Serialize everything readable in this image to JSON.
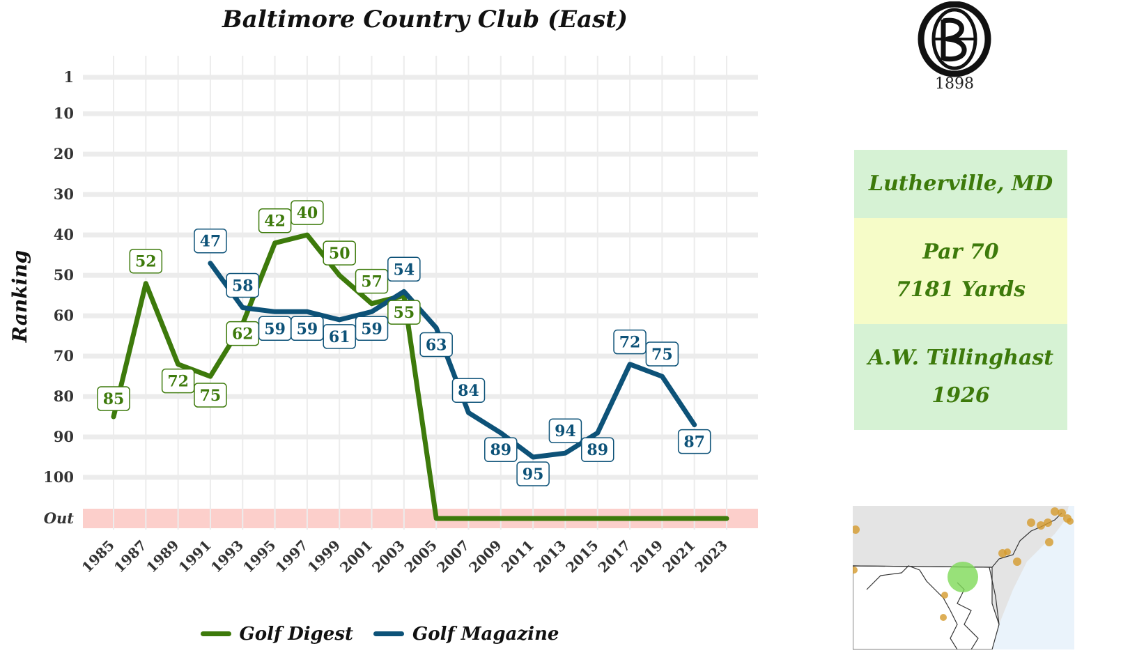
{
  "title": "Baltimore Country Club (East)",
  "colors": {
    "golf_digest": "#3d7a0b",
    "golf_magazine": "#0d5278",
    "out_band": "#fccfcb",
    "grid": "#ebebeb"
  },
  "chart_data": {
    "type": "line",
    "title": "Baltimore Country Club (East)",
    "xlabel": "",
    "ylabel": "Ranking",
    "y_reversed": true,
    "y_ticks": [
      "1",
      "10",
      "20",
      "30",
      "40",
      "50",
      "60",
      "70",
      "80",
      "90",
      "100",
      "Out"
    ],
    "y_tick_values": [
      1,
      10,
      20,
      30,
      40,
      50,
      60,
      70,
      80,
      90,
      100,
      111
    ],
    "out_value": 111,
    "x_ticks": [
      "1985",
      "1987",
      "1989",
      "1991",
      "1993",
      "1995",
      "1997",
      "1999",
      "2001",
      "2003",
      "2005",
      "2007",
      "2009",
      "2011",
      "2013",
      "2015",
      "2017",
      "2019",
      "2021",
      "2023"
    ],
    "xlim": [
      1985,
      2023
    ],
    "grid": true,
    "legend_position": "bottom",
    "series": [
      {
        "name": "Golf Digest",
        "color": "#3d7a0b",
        "x": [
          1985,
          1987,
          1989,
          1991,
          1993,
          1995,
          1997,
          1999,
          2001,
          2003,
          2005,
          2007,
          2009,
          2011,
          2013,
          2015,
          2017,
          2019,
          2021,
          2023
        ],
        "values": [
          85,
          52,
          72,
          75,
          62,
          42,
          40,
          50,
          57,
          55,
          "Out",
          "Out",
          "Out",
          "Out",
          "Out",
          "Out",
          "Out",
          "Out",
          "Out",
          "Out"
        ],
        "labels": [
          "85",
          "52",
          "72",
          "75",
          "62",
          "42",
          "40",
          "50",
          "57",
          "55"
        ]
      },
      {
        "name": "Golf Magazine",
        "color": "#0d5278",
        "x": [
          1991,
          1993,
          1995,
          1997,
          1999,
          2001,
          2003,
          2005,
          2007,
          2009,
          2011,
          2013,
          2015,
          2017,
          2019,
          2021
        ],
        "values": [
          47,
          58,
          59,
          59,
          61,
          59,
          54,
          63,
          84,
          89,
          95,
          94,
          89,
          72,
          75,
          87
        ],
        "labels": [
          "47",
          "58",
          "59",
          "59",
          "61",
          "59",
          "54",
          "63",
          "84",
          "89",
          "95",
          "94",
          "89",
          "72",
          "75",
          "87"
        ]
      }
    ]
  },
  "legend": [
    {
      "name": "Golf Digest",
      "color": "#3d7a0b"
    },
    {
      "name": "Golf Magazine",
      "color": "#0d5278"
    }
  ],
  "logo": {
    "year": "1898"
  },
  "info": {
    "location": "Lutherville, MD",
    "par": "Par 70",
    "yards": "7181 Yards",
    "architect": "A.W. Tillinghast",
    "year": "1926"
  }
}
